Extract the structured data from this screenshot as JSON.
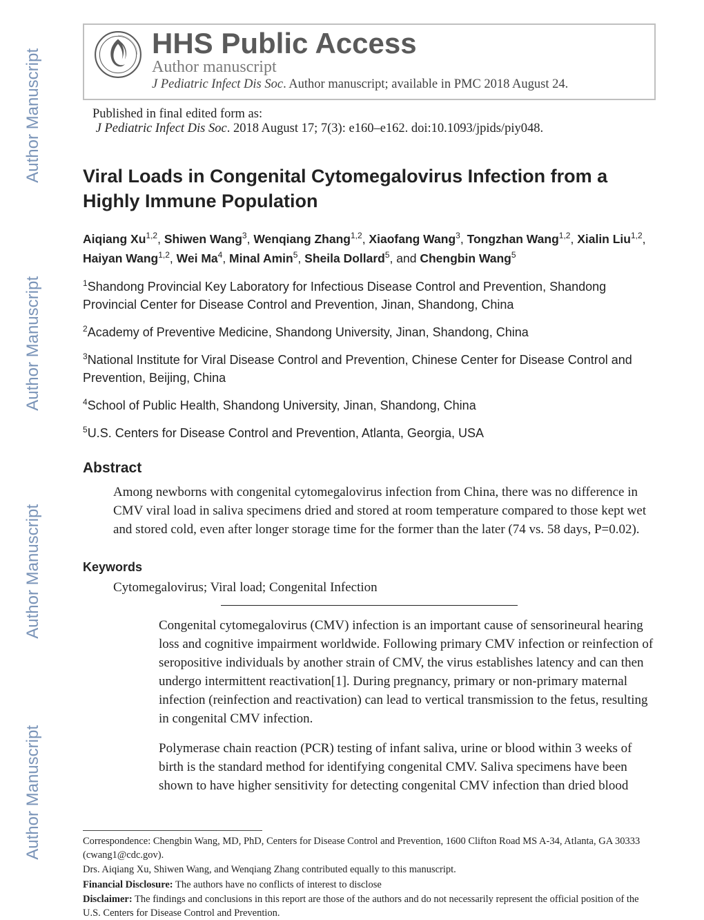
{
  "watermark_text": "Author Manuscript",
  "header": {
    "hhs_title": "HHS Public Access",
    "author_ms": "Author manuscript",
    "journal_line_italic": "J Pediatric Infect Dis Soc",
    "journal_line_rest": ". Author manuscript; available in PMC 2018 August 24."
  },
  "pub": {
    "line1": "Published in final edited form as:",
    "line2_italic": "J Pediatric Infect Dis Soc",
    "line2_rest": ". 2018 August 17; 7(3): e160–e162. doi:10.1093/jpids/piy048."
  },
  "title": "Viral Loads in Congenital Cytomegalovirus Infection from a Highly Immune Population",
  "authors": [
    {
      "name": "Aiqiang Xu",
      "aff": "1,2"
    },
    {
      "name": "Shiwen Wang",
      "aff": "3"
    },
    {
      "name": "Wenqiang Zhang",
      "aff": "1,2"
    },
    {
      "name": "Xiaofang Wang",
      "aff": "3"
    },
    {
      "name": "Tongzhan Wang",
      "aff": "1,2"
    },
    {
      "name": "Xialin Liu",
      "aff": "1,2"
    },
    {
      "name": "Haiyan Wang",
      "aff": "1,2"
    },
    {
      "name": "Wei Ma",
      "aff": "4"
    },
    {
      "name": "Minal Amin",
      "aff": "5"
    },
    {
      "name": "Sheila Dollard",
      "aff": "5"
    },
    {
      "name": "Chengbin Wang",
      "aff": "5"
    }
  ],
  "affiliations": [
    {
      "num": "1",
      "text": "Shandong Provincial Key Laboratory for Infectious Disease Control and Prevention, Shandong Provincial Center for Disease Control and Prevention, Jinan, Shandong, China"
    },
    {
      "num": "2",
      "text": "Academy of Preventive Medicine, Shandong University, Jinan, Shandong, China"
    },
    {
      "num": "3",
      "text": "National Institute for Viral Disease Control and Prevention, Chinese Center for Disease Control and Prevention, Beijing, China"
    },
    {
      "num": "4",
      "text": "School of Public Health, Shandong University, Jinan, Shandong, China"
    },
    {
      "num": "5",
      "text": "U.S. Centers for Disease Control and Prevention, Atlanta, Georgia, USA"
    }
  ],
  "abstract_h": "Abstract",
  "abstract": "Among newborns with congenital cytomegalovirus infection from China, there was no difference in CMV viral load in saliva specimens dried and stored at room temperature compared to those kept wet and stored cold, even after longer storage time for the former than the later (74 vs. 58 days, P=0.02).",
  "keywords_h": "Keywords",
  "keywords": "Cytomegalovirus; Viral load; Congenital Infection",
  "body": [
    "Congenital cytomegalovirus (CMV) infection is an important cause of sensorineural hearing loss and cognitive impairment worldwide. Following primary CMV infection or reinfection of seropositive individuals by another strain of CMV, the virus establishes latency and can then undergo intermittent reactivation[1]. During pregnancy, primary or non-primary maternal infection (reinfection and reactivation) can lead to vertical transmission to the fetus, resulting in congenital CMV infection.",
    "Polymerase chain reaction (PCR) testing of infant saliva, urine or blood within 3 weeks of birth is the standard method for identifying congenital CMV. Saliva specimens have been shown to have higher sensitivity for detecting congenital CMV infection than dried blood"
  ],
  "footnotes": {
    "corr": "Correspondence: Chengbin Wang, MD, PhD, Centers for Disease Control and Prevention, 1600 Clifton Road MS A-34, Atlanta, GA 30333 (cwang1@cdc.gov).",
    "contrib": "Drs. Aiqiang Xu, Shiwen Wang, and Wenqiang Zhang contributed equally to this manuscript.",
    "fin_label": "Financial Disclosure:",
    "fin_text": " The authors have no conflicts of interest to disclose",
    "disc_label": "Disclaimer:",
    "disc_text": " The findings and conclusions in this report are those of the authors and do not necessarily represent the official position of the U.S. Centers for Disease Control and Prevention."
  },
  "colors": {
    "watermark": "#7a94b8",
    "header_gray": "#5a5a5a",
    "border_gray": "#bfbfbf",
    "text": "#222222"
  }
}
